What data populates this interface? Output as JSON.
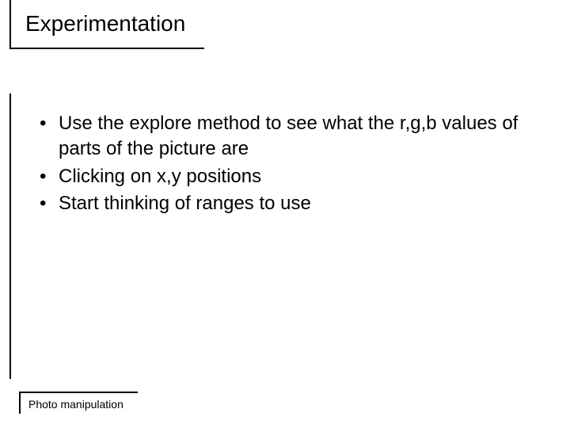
{
  "title": "Experimentation",
  "bullets": [
    "Use the explore method to see what the r,g,b values of parts of the picture are",
    "Clicking on x,y positions",
    "Start thinking of ranges to use"
  ],
  "footer": "Photo manipulation",
  "styles": {
    "slide_width": 720,
    "slide_height": 540,
    "background_color": "#ffffff",
    "text_color": "#000000",
    "rule_color": "#000000",
    "title_fontsize": 28,
    "bullet_fontsize": 24,
    "footer_fontsize": 14,
    "font_family": "Arial"
  }
}
